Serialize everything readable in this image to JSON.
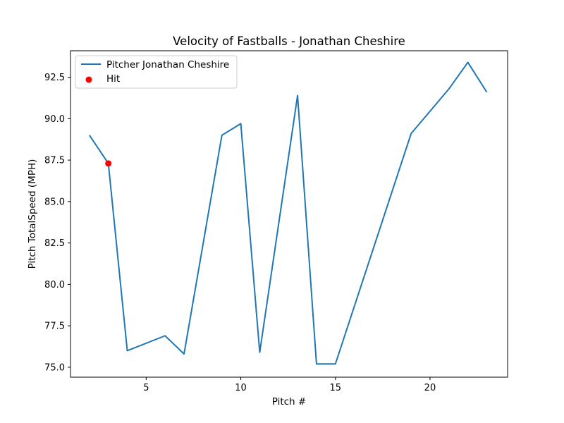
{
  "chart_data": {
    "type": "line",
    "title": "Velocity of Fastballs - Jonathan Cheshire",
    "xlabel": "Pitch #",
    "ylabel": "Pitch TotalSpeed (MPH)",
    "xlim": [
      1,
      24.1
    ],
    "ylim": [
      74.4,
      94.1
    ],
    "xticks": [
      5,
      10,
      15,
      20
    ],
    "xtick_labels": [
      "5",
      "10",
      "15",
      "20"
    ],
    "yticks": [
      75.0,
      77.5,
      80.0,
      82.5,
      85.0,
      87.5,
      90.0,
      92.5
    ],
    "ytick_labels": [
      "75.0",
      "77.5",
      "80.0",
      "82.5",
      "85.0",
      "87.5",
      "90.0",
      "92.5"
    ],
    "grid": false,
    "legend_position": "top-left",
    "series": [
      {
        "name": "Pitcher Jonathan Cheshire",
        "kind": "line",
        "color": "#1f77b4",
        "x": [
          2,
          3,
          4,
          6,
          7,
          9,
          10,
          11,
          13,
          14,
          15,
          19,
          21,
          22,
          23
        ],
        "y": [
          89.0,
          87.3,
          76.0,
          76.9,
          75.8,
          89.0,
          89.7,
          75.9,
          91.4,
          75.2,
          75.2,
          89.1,
          91.8,
          93.4,
          91.6
        ]
      },
      {
        "name": "Hit",
        "kind": "scatter",
        "color": "#ff0000",
        "x": [
          3
        ],
        "y": [
          87.3
        ]
      }
    ]
  }
}
